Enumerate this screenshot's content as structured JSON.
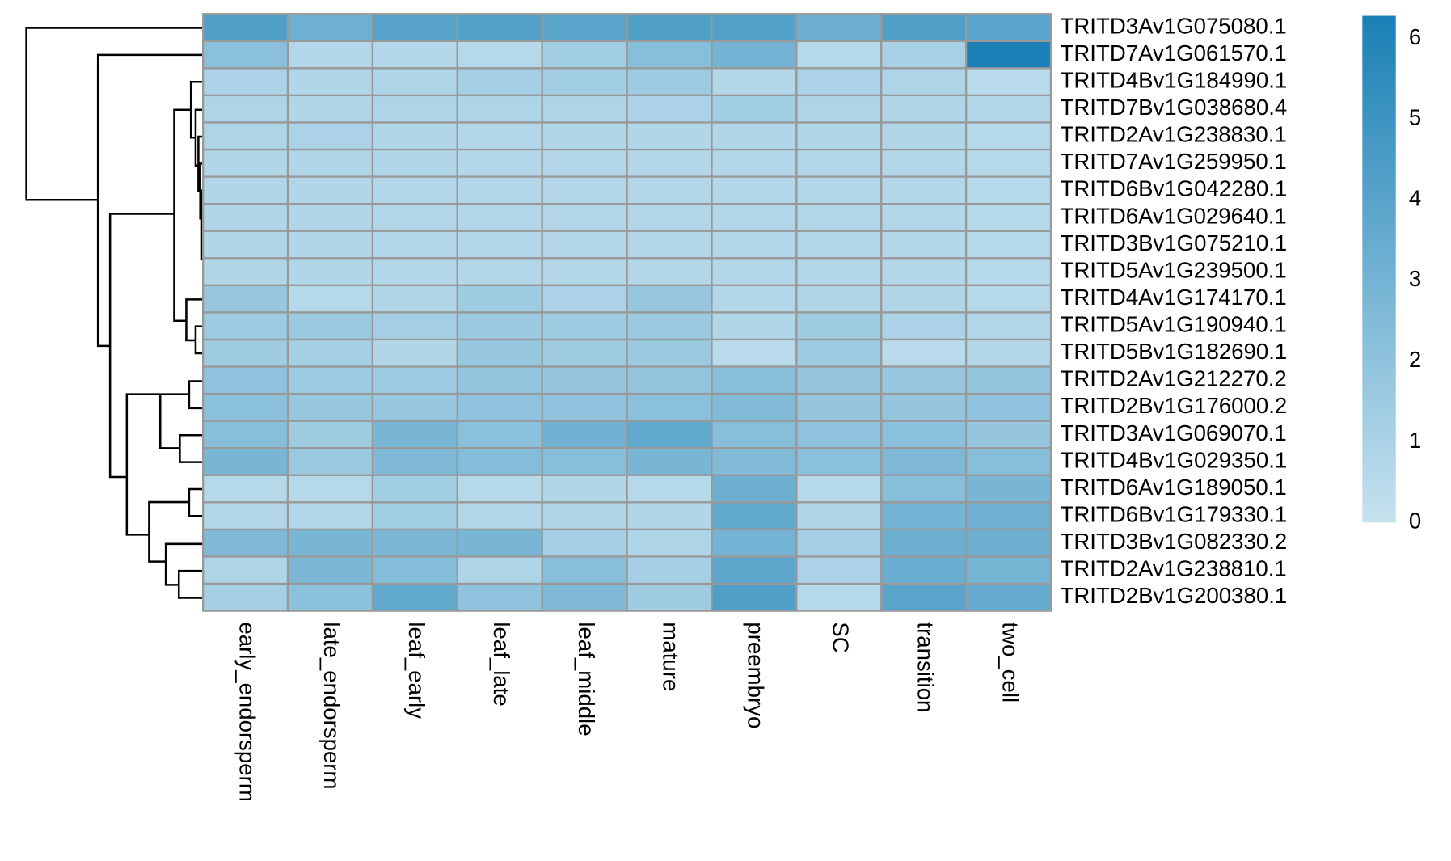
{
  "chart_data": {
    "type": "heatmap",
    "columns": [
      "early_endorsperm",
      "late_endorsperm",
      "leaf_early",
      "leaf_late",
      "leaf_middle",
      "mature",
      "preembryo",
      "SC",
      "transition",
      "two_cell"
    ],
    "rows": [
      "TRITD3Av1G075080.1",
      "TRITD7Av1G061570.1",
      "TRITD4Bv1G184990.1",
      "TRITD7Bv1G038680.4",
      "TRITD2Av1G238830.1",
      "TRITD7Av1G259950.1",
      "TRITD6Bv1G042280.1",
      "TRITD6Av1G029640.1",
      "TRITD3Bv1G075210.1",
      "TRITD5Av1G239500.1",
      "TRITD4Av1G174170.1",
      "TRITD5Av1G190940.1",
      "TRITD5Bv1G182690.1",
      "TRITD2Av1G212270.2",
      "TRITD2Bv1G176000.2",
      "TRITD3Av1G069070.1",
      "TRITD4Bv1G029350.1",
      "TRITD6Av1G189050.1",
      "TRITD6Bv1G179330.1",
      "TRITD3Bv1G082330.2",
      "TRITD2Av1G238810.1",
      "TRITD2Bv1G200380.1"
    ],
    "values": [
      [
        4.3,
        3.2,
        4.1,
        4.2,
        4.0,
        4.3,
        4.2,
        3.3,
        4.3,
        4.0
      ],
      [
        2.2,
        0.7,
        0.7,
        0.6,
        1.3,
        2.3,
        3.0,
        0.6,
        1.1,
        6.2
      ],
      [
        1.0,
        0.8,
        0.9,
        1.2,
        1.3,
        1.5,
        0.7,
        1.0,
        0.9,
        0.5
      ],
      [
        0.9,
        0.8,
        0.9,
        0.9,
        0.9,
        1.0,
        1.3,
        0.9,
        0.8,
        0.7
      ],
      [
        0.9,
        1.0,
        0.8,
        0.7,
        0.8,
        0.8,
        0.8,
        0.8,
        0.8,
        0.6
      ],
      [
        0.8,
        0.8,
        0.8,
        0.7,
        0.7,
        0.7,
        0.7,
        0.7,
        0.7,
        0.6
      ],
      [
        0.8,
        0.8,
        0.7,
        0.7,
        0.7,
        0.7,
        0.7,
        0.7,
        0.7,
        0.6
      ],
      [
        0.8,
        0.8,
        0.7,
        0.7,
        0.7,
        0.7,
        0.7,
        0.7,
        0.7,
        0.6
      ],
      [
        0.8,
        0.8,
        0.7,
        0.7,
        0.7,
        0.7,
        0.7,
        0.7,
        0.7,
        0.6
      ],
      [
        0.8,
        0.8,
        0.7,
        0.7,
        0.7,
        0.7,
        0.7,
        0.7,
        0.7,
        0.6
      ],
      [
        1.7,
        0.6,
        0.8,
        1.4,
        1.0,
        1.7,
        0.7,
        0.8,
        0.8,
        0.6
      ],
      [
        1.5,
        1.6,
        1.2,
        1.6,
        1.5,
        1.6,
        0.8,
        1.4,
        1.0,
        0.7
      ],
      [
        1.4,
        1.2,
        0.8,
        1.7,
        1.4,
        1.6,
        0.5,
        1.5,
        0.5,
        0.7
      ],
      [
        2.0,
        1.5,
        1.5,
        1.9,
        1.8,
        1.9,
        2.3,
        1.8,
        1.7,
        1.9
      ],
      [
        2.1,
        1.7,
        1.7,
        2.0,
        2.0,
        2.2,
        2.5,
        1.8,
        1.8,
        2.0
      ],
      [
        2.3,
        1.4,
        2.8,
        2.2,
        3.1,
        3.7,
        2.3,
        2.0,
        2.2,
        1.8
      ],
      [
        2.8,
        1.6,
        2.6,
        2.4,
        2.3,
        2.8,
        2.5,
        2.2,
        2.6,
        2.3
      ],
      [
        0.6,
        0.6,
        1.3,
        0.6,
        0.8,
        0.6,
        3.3,
        0.6,
        2.3,
        2.8
      ],
      [
        0.7,
        0.7,
        1.3,
        0.7,
        0.8,
        0.8,
        3.7,
        0.8,
        3.0,
        3.2
      ],
      [
        2.6,
        2.8,
        2.7,
        2.8,
        1.2,
        0.9,
        3.0,
        1.2,
        3.3,
        3.3
      ],
      [
        0.9,
        2.7,
        2.4,
        0.9,
        2.3,
        1.2,
        3.8,
        1.0,
        3.4,
        2.9
      ],
      [
        1.2,
        2.1,
        3.7,
        2.0,
        2.6,
        1.4,
        4.3,
        0.6,
        4.0,
        3.5
      ]
    ],
    "clim": [
      0,
      6.28
    ],
    "cticks": [
      0,
      1,
      2,
      3,
      4,
      5,
      6
    ],
    "colors": [
      "#c6e2ef",
      "#1a80b5"
    ],
    "cell_border": "#999999"
  }
}
